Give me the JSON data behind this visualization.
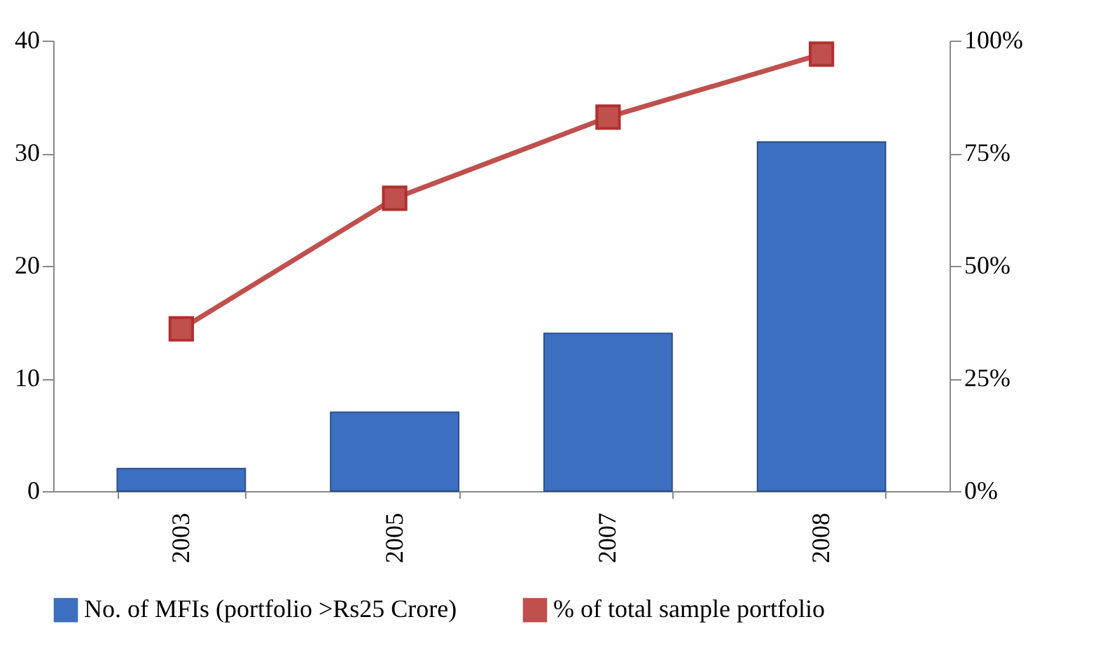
{
  "chart_data": {
    "type": "bar",
    "categories": [
      "2003",
      "2005",
      "2007",
      "2008"
    ],
    "series": [
      {
        "name": "No. of MFIs (portfolio  >Rs25 Crore)",
        "color": "#3c6fc0",
        "values": [
          2,
          7,
          14,
          31
        ]
      },
      {
        "name": "% of total sample portfolio",
        "type": "line",
        "axis": "y2",
        "color": "#c0504d",
        "values": [
          36,
          65,
          83,
          97
        ]
      }
    ],
    "ylim": [
      0,
      40
    ],
    "yticks": [
      0,
      10,
      20,
      30,
      40
    ],
    "y2lim": [
      0,
      100
    ],
    "y2ticks": [
      {
        "value": 0,
        "label": "0%"
      },
      {
        "value": 25,
        "label": "25%"
      },
      {
        "value": 50,
        "label": "50%"
      },
      {
        "value": 75,
        "label": "75%"
      },
      {
        "value": 100,
        "label": "100%"
      }
    ],
    "grid": false,
    "legend": "bottom",
    "marker": "square",
    "line_style": "solid"
  }
}
